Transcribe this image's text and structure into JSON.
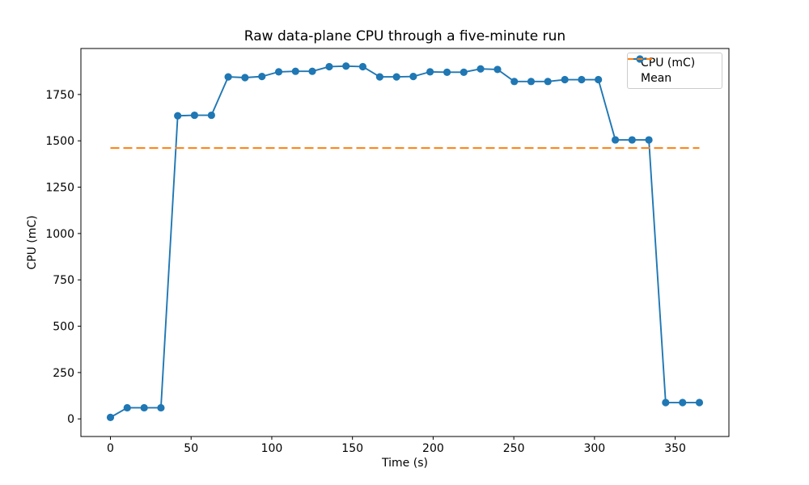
{
  "chart_data": {
    "type": "line",
    "title": "Raw data-plane CPU through a five-minute run",
    "xlabel": "Time (s)",
    "ylabel": "CPU (mC)",
    "x": [
      0,
      10.4,
      20.9,
      31.3,
      41.7,
      52.1,
      62.6,
      73.0,
      83.4,
      93.9,
      104.3,
      114.7,
      125.1,
      135.6,
      146.0,
      156.4,
      166.9,
      177.3,
      187.7,
      198.1,
      208.6,
      219.0,
      229.4,
      239.9,
      250.3,
      260.7,
      271.1,
      281.6,
      292.0,
      302.4,
      312.9,
      323.3,
      333.7,
      344.1,
      354.6,
      365.0
    ],
    "series": [
      {
        "name": "CPU (mC)",
        "color": "#1f77b4",
        "marker": "circle",
        "line_style": "solid",
        "values": [
          8,
          60,
          60,
          60,
          1635,
          1638,
          1638,
          1845,
          1841,
          1847,
          1872,
          1875,
          1875,
          1900,
          1903,
          1900,
          1845,
          1845,
          1847,
          1872,
          1870,
          1870,
          1888,
          1885,
          1820,
          1820,
          1820,
          1830,
          1830,
          1830,
          1505,
          1505,
          1505,
          88,
          88,
          88
        ]
      }
    ],
    "mean": {
      "label": "Mean",
      "value": 1461.3,
      "color": "#ff7f0e",
      "line_style": "dashed"
    },
    "xticks": [
      0,
      50,
      100,
      150,
      200,
      250,
      300,
      350
    ],
    "yticks": [
      0,
      250,
      500,
      750,
      1000,
      1250,
      1500,
      1750
    ],
    "xlim": [
      -18.3,
      383.3
    ],
    "ylim": [
      -95,
      1998
    ],
    "grid": false,
    "legend_position": "upper right"
  }
}
